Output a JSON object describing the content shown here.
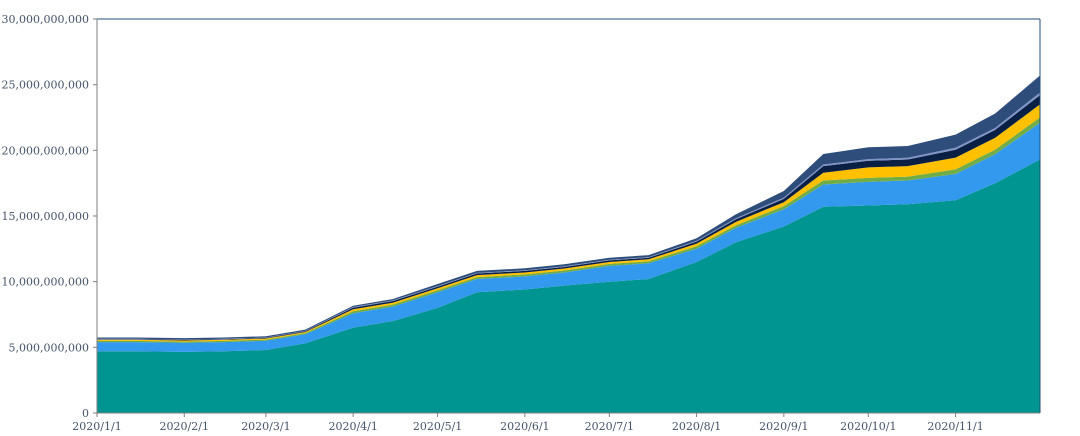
{
  "chart_data": {
    "type": "area",
    "stacked": true,
    "title": "",
    "xlabel": "",
    "ylabel": "",
    "ylim": [
      0,
      30000000000
    ],
    "grid": false,
    "legend": "none",
    "y_ticks": [
      {
        "value": 0,
        "label": "0"
      },
      {
        "value": 5000000000,
        "label": "5,000,000,000"
      },
      {
        "value": 10000000000,
        "label": "10,000,000,000"
      },
      {
        "value": 15000000000,
        "label": "15,000,000,000"
      },
      {
        "value": 20000000000,
        "label": "20,000,000,000"
      },
      {
        "value": 25000000000,
        "label": "25,000,000,000"
      },
      {
        "value": 30000000000,
        "label": "30,000,000,000"
      }
    ],
    "x_ticks": [
      {
        "value": "2020-01-01",
        "label": "2020/1/1"
      },
      {
        "value": "2020-02-01",
        "label": "2020/2/1"
      },
      {
        "value": "2020-03-01",
        "label": "2020/3/1"
      },
      {
        "value": "2020-04-01",
        "label": "2020/4/1"
      },
      {
        "value": "2020-05-01",
        "label": "2020/5/1"
      },
      {
        "value": "2020-06-01",
        "label": "2020/6/1"
      },
      {
        "value": "2020-07-01",
        "label": "2020/7/1"
      },
      {
        "value": "2020-08-01",
        "label": "2020/8/1"
      },
      {
        "value": "2020-09-01",
        "label": "2020/9/1"
      },
      {
        "value": "2020-10-01",
        "label": "2020/10/1"
      },
      {
        "value": "2020-11-01",
        "label": "2020/11/1"
      }
    ],
    "x": [
      "2020-01-01",
      "2020-01-15",
      "2020-02-01",
      "2020-02-15",
      "2020-03-01",
      "2020-03-15",
      "2020-04-01",
      "2020-04-15",
      "2020-05-01",
      "2020-05-15",
      "2020-06-01",
      "2020-06-15",
      "2020-07-01",
      "2020-07-15",
      "2020-08-01",
      "2020-08-15",
      "2020-09-01",
      "2020-09-15",
      "2020-10-01",
      "2020-10-15",
      "2020-11-01",
      "2020-11-15",
      "2020-12-01"
    ],
    "series": [
      {
        "name": "",
        "color": "#009590",
        "values": [
          4700000000,
          4700000000,
          4650000000,
          4700000000,
          4800000000,
          5300000000,
          6500000000,
          7000000000,
          8000000000,
          9200000000,
          9400000000,
          9700000000,
          10000000000,
          10200000000,
          11500000000,
          13000000000,
          14200000000,
          15700000000,
          15800000000,
          15900000000,
          16200000000,
          17500000000,
          19300000000
        ]
      },
      {
        "name": "",
        "color": "#3399ee",
        "values": [
          700000000,
          700000000,
          700000000,
          700000000,
          700000000,
          700000000,
          1100000000,
          1100000000,
          1200000000,
          1000000000,
          1000000000,
          1000000000,
          1200000000,
          1200000000,
          1000000000,
          1100000000,
          1300000000,
          1700000000,
          1800000000,
          1800000000,
          2000000000,
          2200000000,
          2800000000
        ]
      },
      {
        "name": "",
        "color": "#70ad47",
        "values": [
          90000000,
          90000000,
          90000000,
          90000000,
          90000000,
          90000000,
          150000000,
          150000000,
          150000000,
          150000000,
          150000000,
          150000000,
          150000000,
          150000000,
          200000000,
          200000000,
          250000000,
          300000000,
          300000000,
          300000000,
          350000000,
          350000000,
          400000000
        ]
      },
      {
        "name": "",
        "color": "#ffc000",
        "values": [
          80000000,
          80000000,
          80000000,
          80000000,
          80000000,
          80000000,
          150000000,
          150000000,
          150000000,
          150000000,
          150000000,
          150000000,
          150000000,
          150000000,
          200000000,
          250000000,
          300000000,
          600000000,
          800000000,
          800000000,
          900000000,
          900000000,
          1000000000
        ]
      },
      {
        "name": "",
        "color": "#0a1f44",
        "values": [
          50000000,
          50000000,
          50000000,
          50000000,
          50000000,
          50000000,
          120000000,
          120000000,
          120000000,
          120000000,
          120000000,
          120000000,
          120000000,
          120000000,
          150000000,
          200000000,
          250000000,
          500000000,
          500000000,
          500000000,
          600000000,
          600000000,
          700000000
        ]
      },
      {
        "name": "",
        "color": "#7f93c6",
        "values": [
          30000000,
          30000000,
          30000000,
          30000000,
          30000000,
          30000000,
          50000000,
          50000000,
          50000000,
          50000000,
          50000000,
          50000000,
          50000000,
          50000000,
          60000000,
          80000000,
          100000000,
          120000000,
          130000000,
          130000000,
          150000000,
          150000000,
          200000000
        ]
      },
      {
        "name": "",
        "color": "#2e4d7b",
        "values": [
          100000000,
          100000000,
          100000000,
          100000000,
          100000000,
          100000000,
          100000000,
          100000000,
          150000000,
          150000000,
          150000000,
          150000000,
          150000000,
          150000000,
          200000000,
          300000000,
          500000000,
          800000000,
          900000000,
          900000000,
          1000000000,
          1100000000,
          1300000000
        ]
      }
    ],
    "axis_color": "#7f7f7f",
    "border_color": "#1f4e79"
  }
}
